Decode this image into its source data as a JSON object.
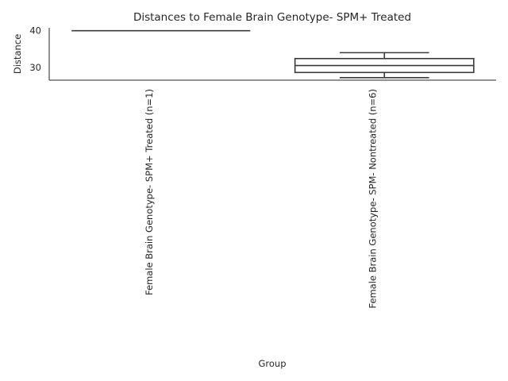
{
  "chart_data": {
    "type": "box",
    "title": "Distances to Female Brain Genotype- SPM+ Treated",
    "xlabel": "Group",
    "ylabel": "Distance",
    "ylim": [
      26.5,
      40.8
    ],
    "yticks": [
      30,
      40
    ],
    "grid": false,
    "categories": [
      "Female Brain Genotype- SPM+ Treated (n=1)",
      "Female Brain Genotype- SPM- Nontreated (n=6)"
    ],
    "boxes": [
      {
        "category": "Female Brain Genotype- SPM+ Treated (n=1)",
        "whisker_low": 40.0,
        "q1": 40.0,
        "median": 40.0,
        "q3": 40.0,
        "whisker_high": 40.0
      },
      {
        "category": "Female Brain Genotype- SPM- Nontreated (n=6)",
        "whisker_low": 27.2,
        "q1": 28.6,
        "median": 30.5,
        "q3": 32.4,
        "whisker_high": 34.0
      }
    ]
  }
}
